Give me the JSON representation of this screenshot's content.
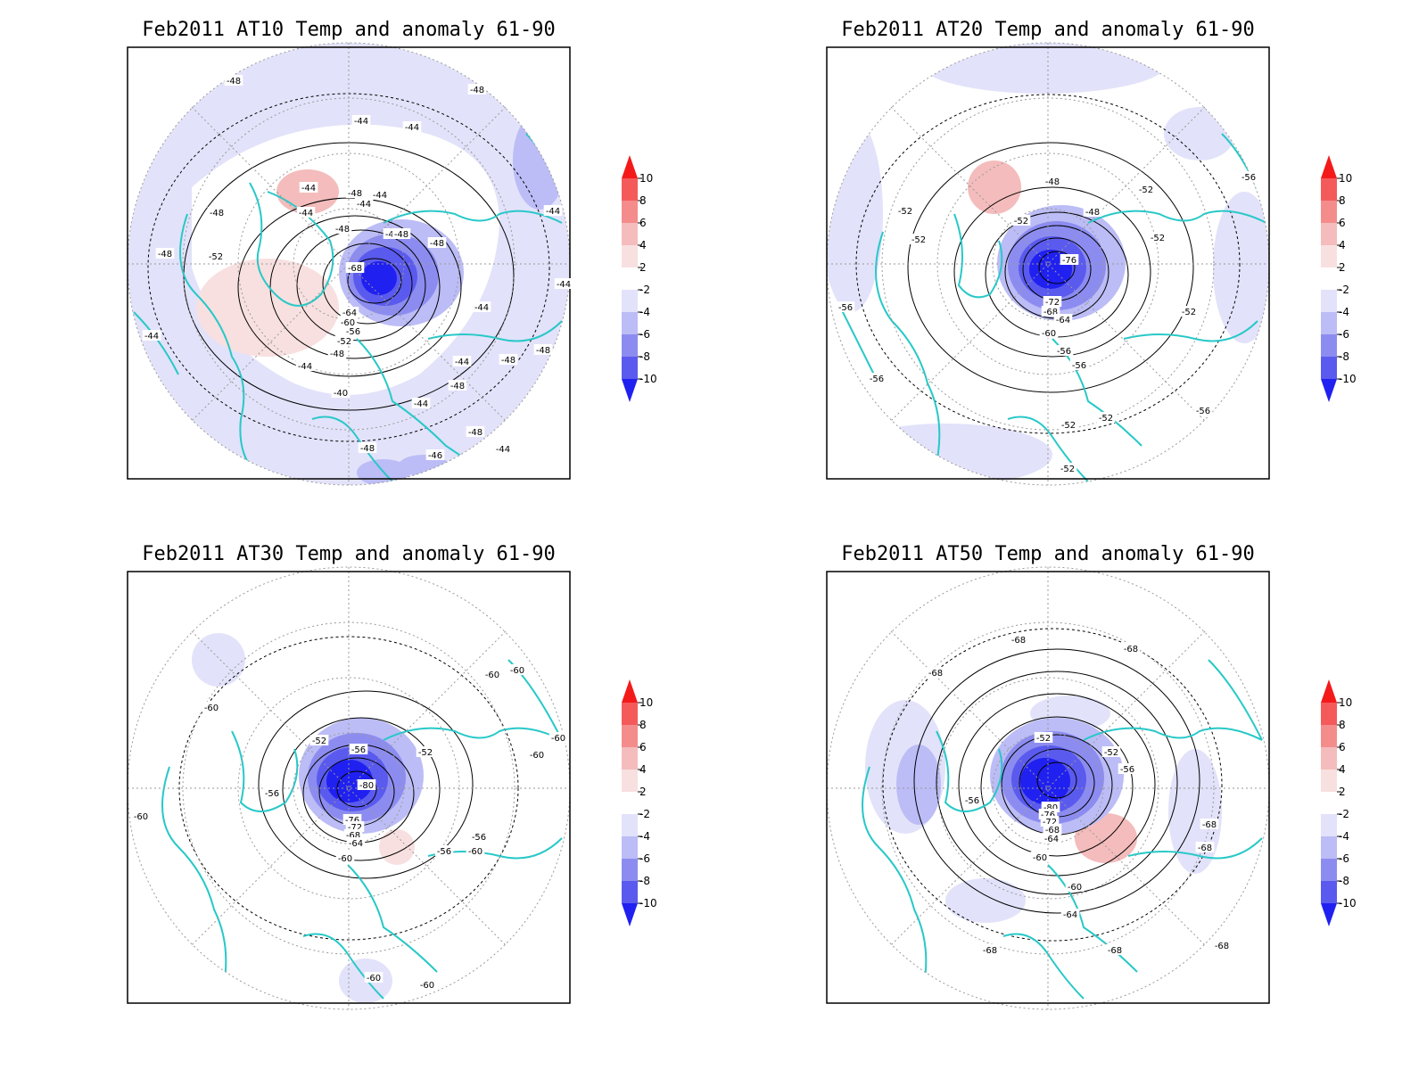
{
  "colors": {
    "coast": "#28c8c8",
    "contour": "#000000",
    "grid": "#9a9a9a",
    "frame": "#000000"
  },
  "legend": {
    "ticks": [
      "10",
      "8",
      "6",
      "4",
      "2",
      "-2",
      "-4",
      "-6",
      "-8",
      "-10"
    ],
    "fills": [
      "#f41a1a",
      "#f45a5a",
      "#f48c8c",
      "#f4bcbc",
      "#f8e0e0",
      "#ffffff",
      "#e2e2fa",
      "#bcbcf6",
      "#8c8cf0",
      "#5a5aee",
      "#2020f0"
    ]
  },
  "panels": [
    {
      "title": "Feb2011 AT10 Temp and anomaly 61-90",
      "labels": [
        "-48",
        "-48",
        "-44",
        "-44",
        "-44",
        "-48",
        "-44",
        "-48",
        "-44",
        "-44",
        "-52",
        "-48",
        "-44",
        "-48",
        "-48",
        "-44",
        "-68",
        "-64",
        "-60",
        "-56",
        "-52",
        "-48",
        "-44",
        "-40",
        "-44",
        "-44",
        "-48",
        "-44",
        "-48",
        "-48",
        "-44",
        "-48",
        "-46",
        "-48",
        "-44",
        "-44",
        "-48"
      ]
    },
    {
      "title": "Feb2011 AT20 Temp and anomaly 61-90",
      "labels": [
        "-48",
        "-52",
        "-52",
        "-52",
        "-48",
        "-52",
        "-52",
        "-76",
        "-72",
        "-68",
        "-64",
        "-60",
        "-56",
        "-52",
        "-56",
        "-56",
        "-52",
        "-52",
        "-56",
        "-56",
        "-52",
        "-56"
      ]
    },
    {
      "title": "Feb2011 AT30 Temp and anomaly 61-90",
      "labels": [
        "-60",
        "-60",
        "-60",
        "-60",
        "-60",
        "-52",
        "-56",
        "-52",
        "-56",
        "-80",
        "-76",
        "-72",
        "-68",
        "-64",
        "-60",
        "-56",
        "-56",
        "-60",
        "-60",
        "-60",
        "-60"
      ]
    },
    {
      "title": "Feb2011 AT50 Temp and anomaly 61-90",
      "labels": [
        "-68",
        "-68",
        "-68",
        "-52",
        "-52",
        "-56",
        "-56",
        "-80",
        "-76",
        "-72",
        "-68",
        "-64",
        "-60",
        "-60",
        "-68",
        "-68",
        "-64",
        "-68",
        "-68",
        "-68"
      ]
    }
  ]
}
